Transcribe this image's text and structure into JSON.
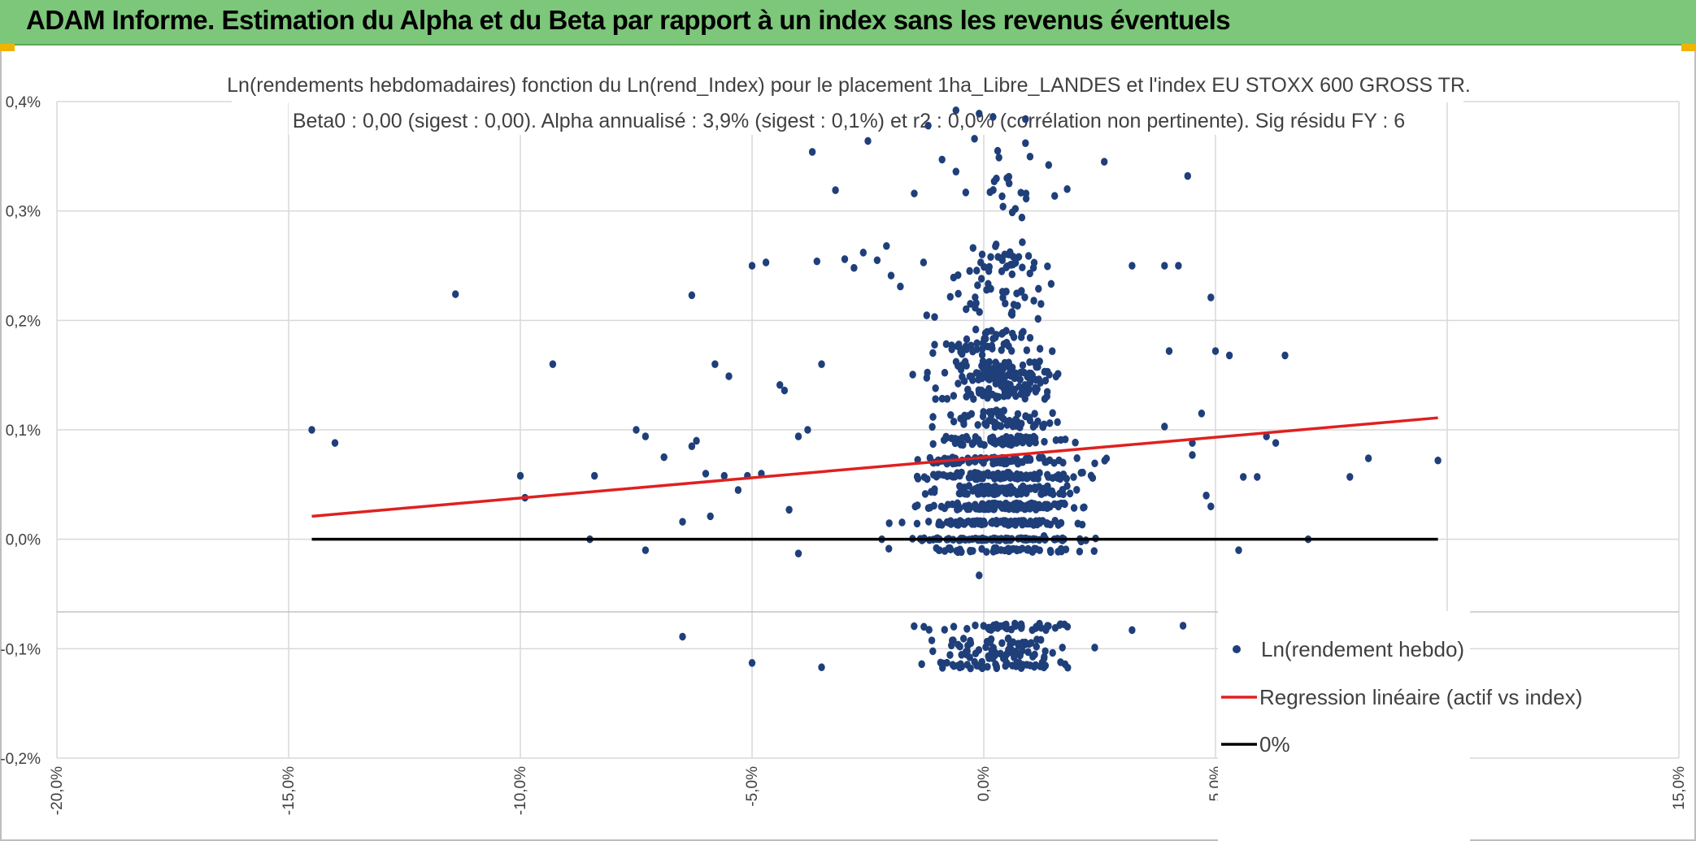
{
  "header": {
    "title": "ADAM Informe. Estimation du Alpha et du Beta par rapport à un index sans les revenus éventuels",
    "color": "#7cc77a"
  },
  "chart_data": {
    "type": "scatter",
    "title_line1": "Ln(rendements hebdomadaires) fonction du Ln(rend_Index) pour le placement 1ha_Libre_LANDES et l'index EU STOXX 600 GROSS TR.",
    "title_line2": "Beta0 : 0,00 (sigest : 0,00). Alpha annualisé : 3,9% (sigest : 0,1%) et r2 : 0,0% (corrélation non pertinente). Sig résidu FY : 6",
    "xlim": [
      -20,
      15
    ],
    "ylim": [
      -0.2,
      0.4
    ],
    "x_ticks": [
      "-20,0%",
      "-15,0%",
      "-10,0%",
      "-5,0%",
      "0,0%",
      "5,0%",
      "10,0%",
      "15,0%"
    ],
    "y_ticks": [
      "0,4%",
      "0,3%",
      "0,2%",
      "0,1%",
      "0,0%",
      "-0,1%",
      "-0,2%"
    ],
    "grid": true,
    "legend_position": "bottom-right",
    "series": [
      {
        "name": "Ln(rendement hebdo)",
        "kind": "scatter",
        "color": "#1f3f7a",
        "points": [
          [
            -14.5,
            0.1
          ],
          [
            -14.0,
            0.088
          ],
          [
            -11.4,
            0.224
          ],
          [
            -10.0,
            0.058
          ],
          [
            -9.9,
            0.038
          ],
          [
            -9.3,
            0.16
          ],
          [
            -8.5,
            0.0
          ],
          [
            -8.4,
            0.058
          ],
          [
            -7.5,
            0.1
          ],
          [
            -7.3,
            0.094
          ],
          [
            -7.3,
            -0.01
          ],
          [
            -6.9,
            0.075
          ],
          [
            -6.3,
            0.223
          ],
          [
            -6.3,
            0.085
          ],
          [
            -6.2,
            0.09
          ],
          [
            -6.0,
            0.06
          ],
          [
            -5.9,
            0.021
          ],
          [
            -5.8,
            0.16
          ],
          [
            -5.6,
            0.058
          ],
          [
            -5.5,
            0.149
          ],
          [
            -5.3,
            0.045
          ],
          [
            -5.1,
            0.058
          ],
          [
            -5.0,
            -0.113
          ],
          [
            -5.0,
            0.25
          ],
          [
            -4.8,
            0.06
          ],
          [
            -4.7,
            0.253
          ],
          [
            -4.4,
            0.141
          ],
          [
            -4.3,
            0.136
          ],
          [
            -4.2,
            0.027
          ],
          [
            -4.0,
            0.094
          ],
          [
            -4.0,
            -0.013
          ],
          [
            -3.8,
            0.1
          ],
          [
            -3.7,
            0.354
          ],
          [
            -3.6,
            0.254
          ],
          [
            -3.5,
            -0.117
          ],
          [
            -3.2,
            0.319
          ],
          [
            -3.5,
            0.16
          ],
          [
            -3.0,
            0.256
          ],
          [
            -2.8,
            0.248
          ],
          [
            -2.6,
            0.262
          ],
          [
            -2.5,
            0.364
          ],
          [
            -2.3,
            0.255
          ],
          [
            -2.1,
            0.268
          ],
          [
            -2.0,
            0.241
          ],
          [
            -1.8,
            0.231
          ],
          [
            -1.5,
            0.316
          ],
          [
            -1.3,
            0.253
          ],
          [
            -1.2,
            0.378
          ],
          [
            -0.9,
            0.347
          ],
          [
            -0.6,
            0.336
          ],
          [
            -0.2,
            0.366
          ],
          [
            0.3,
            0.355
          ],
          [
            0.5,
            0.33
          ],
          [
            0.9,
            0.362
          ],
          [
            1.4,
            0.342
          ],
          [
            1.8,
            0.32
          ],
          [
            2.6,
            0.345
          ],
          [
            3.2,
            0.25
          ],
          [
            3.9,
            0.25
          ],
          [
            4.4,
            0.332
          ],
          [
            4.9,
            0.221
          ],
          [
            5.0,
            0.172
          ],
          [
            5.3,
            0.168
          ],
          [
            5.5,
            -0.01
          ],
          [
            5.6,
            0.057
          ],
          [
            5.9,
            0.057
          ],
          [
            6.1,
            0.094
          ],
          [
            6.3,
            0.088
          ],
          [
            6.5,
            0.168
          ],
          [
            7.0,
            0.0
          ],
          [
            7.9,
            0.057
          ],
          [
            8.3,
            0.074
          ],
          [
            9.8,
            0.072
          ],
          [
            -6.5,
            -0.089
          ],
          [
            -6.5,
            0.016
          ],
          [
            4.7,
            0.115
          ],
          [
            4.2,
            0.25
          ],
          [
            3.9,
            0.103
          ],
          [
            4.0,
            0.172
          ],
          [
            4.5,
            0.088
          ],
          [
            4.5,
            0.077
          ],
          [
            4.8,
            0.04
          ],
          [
            4.9,
            0.03
          ],
          [
            -0.6,
            0.392
          ],
          [
            -0.1,
            0.389
          ],
          [
            0.2,
            0.386
          ],
          [
            0.9,
            0.384
          ],
          [
            4.3,
            -0.079
          ],
          [
            3.2,
            -0.083
          ],
          [
            -0.1,
            -0.033
          ],
          [
            1.3,
            0.003
          ],
          [
            2.1,
            -0.002
          ],
          [
            -2.2,
            0.0
          ],
          [
            -1.0,
            0.001
          ],
          [
            0.8,
            0.001
          ],
          [
            1.7,
            -0.001
          ]
        ]
      },
      {
        "name": "Regression linéaire (actif vs index)",
        "kind": "line",
        "color": "#e02020",
        "x": [
          -14.5,
          9.8
        ],
        "y": [
          0.021,
          0.111
        ]
      },
      {
        "name": "0%",
        "kind": "line",
        "color": "#000000",
        "x": [
          -14.5,
          9.8
        ],
        "y": [
          0.0,
          0.0
        ]
      }
    ],
    "cluster_notes": "Dense cloud centred near 0% x; points quantized into horizontal bands at y ≈ -0.01, 0.00, 0.015, 0.03–0.06, 0.07–0.09, 0.1–0.2, and -0.08 to -0.12."
  }
}
